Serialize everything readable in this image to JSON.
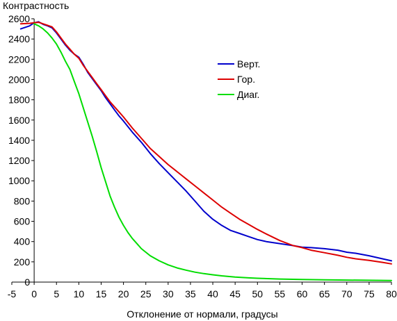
{
  "chart_data": {
    "type": "line",
    "title": "",
    "xlabel": "Отклонение от нормали, градусы",
    "ylabel": "Контрастность",
    "xlim": [
      -5,
      80
    ],
    "ylim": [
      0,
      2600
    ],
    "x_ticks": [
      "-5",
      "0",
      "5",
      "10",
      "15",
      "20",
      "25",
      "30",
      "35",
      "40",
      "45",
      "50",
      "55",
      "60",
      "65",
      "70",
      "75",
      "80"
    ],
    "y_ticks": [
      "0",
      "200",
      "400",
      "600",
      "800",
      "1000",
      "1200",
      "1400",
      "1600",
      "1800",
      "2000",
      "2200",
      "2400",
      "2600"
    ],
    "grid": false,
    "legend_position": "top-right",
    "series": [
      {
        "name": "Верт.",
        "color": "#0000cc",
        "points": [
          [
            -3,
            2500
          ],
          [
            -1,
            2530
          ],
          [
            0,
            2560
          ],
          [
            1,
            2570
          ],
          [
            2,
            2545
          ],
          [
            3,
            2530
          ],
          [
            4,
            2510
          ],
          [
            5,
            2460
          ],
          [
            6,
            2400
          ],
          [
            7,
            2340
          ],
          [
            8,
            2290
          ],
          [
            9,
            2250
          ],
          [
            10,
            2220
          ],
          [
            11,
            2150
          ],
          [
            12,
            2070
          ],
          [
            13,
            2010
          ],
          [
            14,
            1950
          ],
          [
            15,
            1890
          ],
          [
            16,
            1820
          ],
          [
            17,
            1760
          ],
          [
            18,
            1700
          ],
          [
            19,
            1640
          ],
          [
            20,
            1590
          ],
          [
            22,
            1480
          ],
          [
            24,
            1380
          ],
          [
            26,
            1270
          ],
          [
            28,
            1170
          ],
          [
            30,
            1080
          ],
          [
            32,
            990
          ],
          [
            34,
            900
          ],
          [
            36,
            800
          ],
          [
            38,
            700
          ],
          [
            40,
            620
          ],
          [
            42,
            560
          ],
          [
            44,
            510
          ],
          [
            46,
            480
          ],
          [
            48,
            450
          ],
          [
            50,
            420
          ],
          [
            52,
            400
          ],
          [
            55,
            380
          ],
          [
            58,
            360
          ],
          [
            60,
            345
          ],
          [
            62,
            340
          ],
          [
            65,
            330
          ],
          [
            68,
            315
          ],
          [
            70,
            295
          ],
          [
            72,
            285
          ],
          [
            75,
            260
          ],
          [
            78,
            230
          ],
          [
            80,
            210
          ]
        ]
      },
      {
        "name": "Гор.",
        "color": "#dd0000",
        "points": [
          [
            -3,
            2550
          ],
          [
            -1,
            2555
          ],
          [
            0,
            2560
          ],
          [
            1,
            2565
          ],
          [
            2,
            2550
          ],
          [
            3,
            2535
          ],
          [
            4,
            2520
          ],
          [
            5,
            2470
          ],
          [
            6,
            2410
          ],
          [
            7,
            2350
          ],
          [
            8,
            2300
          ],
          [
            9,
            2250
          ],
          [
            10,
            2210
          ],
          [
            11,
            2140
          ],
          [
            12,
            2080
          ],
          [
            13,
            2020
          ],
          [
            14,
            1960
          ],
          [
            15,
            1900
          ],
          [
            16,
            1840
          ],
          [
            17,
            1780
          ],
          [
            18,
            1730
          ],
          [
            19,
            1680
          ],
          [
            20,
            1630
          ],
          [
            22,
            1520
          ],
          [
            24,
            1420
          ],
          [
            26,
            1320
          ],
          [
            28,
            1240
          ],
          [
            30,
            1160
          ],
          [
            32,
            1090
          ],
          [
            34,
            1020
          ],
          [
            36,
            950
          ],
          [
            38,
            880
          ],
          [
            40,
            810
          ],
          [
            42,
            740
          ],
          [
            44,
            680
          ],
          [
            46,
            620
          ],
          [
            48,
            570
          ],
          [
            50,
            520
          ],
          [
            52,
            475
          ],
          [
            55,
            410
          ],
          [
            58,
            360
          ],
          [
            60,
            340
          ],
          [
            62,
            315
          ],
          [
            65,
            290
          ],
          [
            68,
            265
          ],
          [
            70,
            245
          ],
          [
            72,
            230
          ],
          [
            75,
            215
          ],
          [
            78,
            195
          ],
          [
            80,
            180
          ]
        ]
      },
      {
        "name": "Диаг.",
        "color": "#00dd00",
        "points": [
          [
            0,
            2550
          ],
          [
            1,
            2530
          ],
          [
            2,
            2500
          ],
          [
            3,
            2460
          ],
          [
            4,
            2410
          ],
          [
            5,
            2350
          ],
          [
            6,
            2270
          ],
          [
            7,
            2180
          ],
          [
            8,
            2100
          ],
          [
            9,
            1980
          ],
          [
            10,
            1860
          ],
          [
            11,
            1720
          ],
          [
            12,
            1580
          ],
          [
            13,
            1440
          ],
          [
            14,
            1290
          ],
          [
            15,
            1130
          ],
          [
            16,
            990
          ],
          [
            17,
            850
          ],
          [
            18,
            740
          ],
          [
            19,
            640
          ],
          [
            20,
            560
          ],
          [
            21,
            490
          ],
          [
            22,
            430
          ],
          [
            23,
            380
          ],
          [
            24,
            330
          ],
          [
            25,
            295
          ],
          [
            26,
            260
          ],
          [
            28,
            210
          ],
          [
            30,
            170
          ],
          [
            32,
            140
          ],
          [
            34,
            118
          ],
          [
            36,
            98
          ],
          [
            38,
            84
          ],
          [
            40,
            72
          ],
          [
            42,
            62
          ],
          [
            45,
            50
          ],
          [
            48,
            42
          ],
          [
            50,
            38
          ],
          [
            55,
            30
          ],
          [
            60,
            26
          ],
          [
            65,
            22
          ],
          [
            70,
            20
          ],
          [
            75,
            18
          ],
          [
            80,
            16
          ]
        ]
      }
    ]
  }
}
